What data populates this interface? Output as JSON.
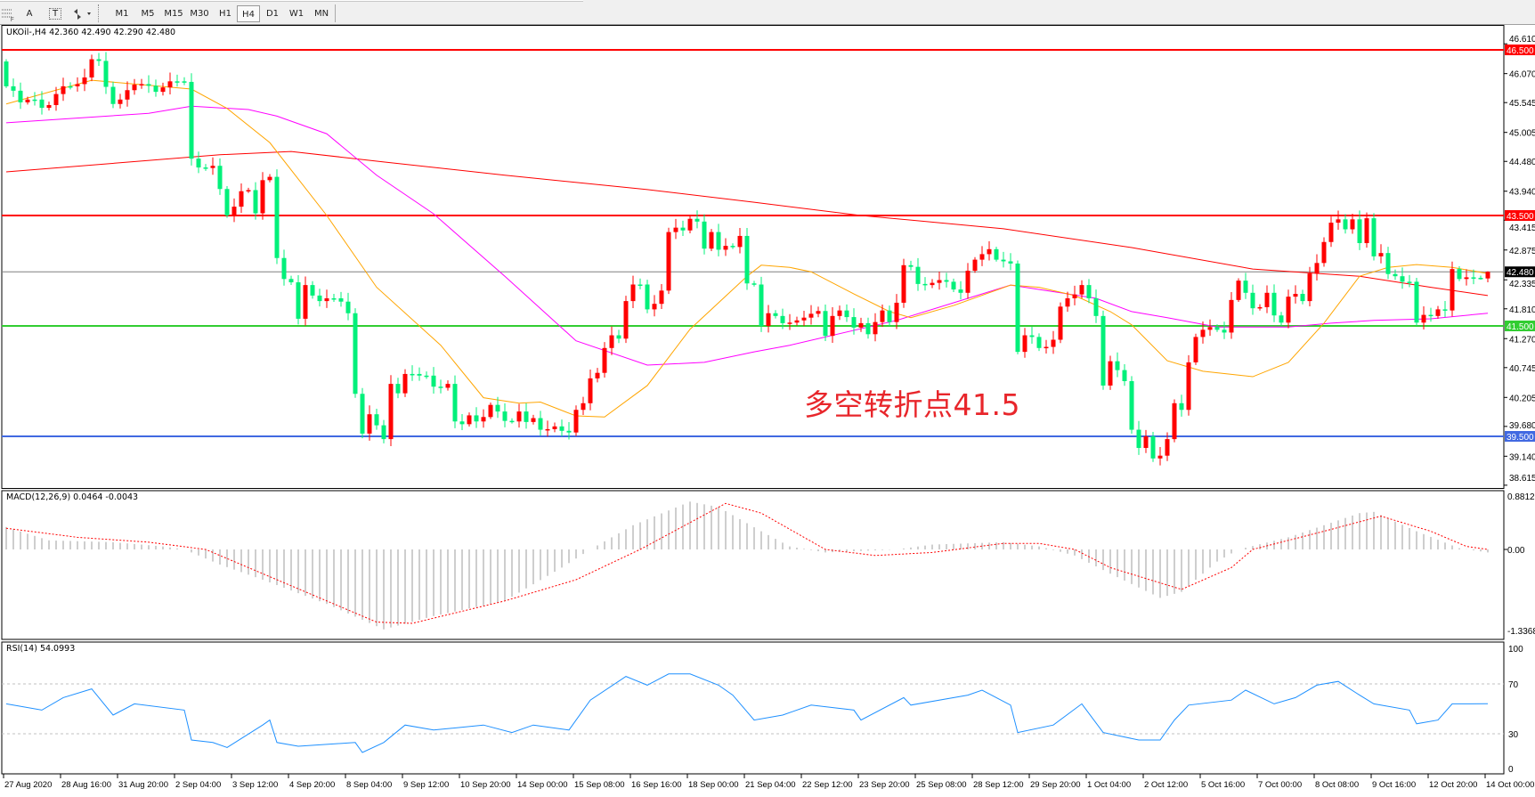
{
  "toolbar": {
    "tools": [
      {
        "icon": "hline-list-icon"
      },
      {
        "icon": "text-a-icon",
        "label": "A"
      },
      {
        "icon": "text-label-icon",
        "label": "T"
      },
      {
        "icon": "arrows-icon"
      }
    ],
    "timeframes": [
      "M1",
      "M5",
      "M15",
      "M30",
      "H1",
      "H4",
      "D1",
      "W1",
      "MN"
    ],
    "active_timeframe": "H4"
  },
  "chart": {
    "title": "UKOil-,H4  42.360 42.490 42.290 42.480",
    "symbol": "UKOil-",
    "timeframe": "H4",
    "open": 42.36,
    "high": 42.49,
    "low": 42.29,
    "close": 42.48,
    "annotation": "多空转折点41.5",
    "colors": {
      "bull": "#ff0000",
      "bear": "#00f07a",
      "ma_fast": "#ffa500",
      "ma_mid": "#ff00ff",
      "ma_slow": "#ff0000",
      "grid": "#c0c0c0"
    },
    "price_axis": {
      "range": [
        38.56,
        46.92
      ],
      "ticks": [
        "46.610",
        "46.070",
        "45.545",
        "45.005",
        "44.480",
        "43.940",
        "43.415",
        "42.875",
        "42.335",
        "41.810",
        "41.270",
        "40.745",
        "40.205",
        "39.680",
        "39.140",
        "38.615"
      ]
    },
    "levels": [
      {
        "price": 46.5,
        "label": "46.500",
        "color": "#ff0000"
      },
      {
        "price": 43.5,
        "label": "43.500",
        "color": "#ff0000"
      },
      {
        "price": 42.48,
        "label": "42.480",
        "color": "#808080",
        "label_bg": "#000000"
      },
      {
        "price": 41.5,
        "label": "41.500",
        "color": "#32cd32"
      },
      {
        "price": 39.5,
        "label": "39.500",
        "color": "#4169e1"
      }
    ],
    "first_open": 46.29,
    "closes": [
      45.84,
      45.76,
      45.55,
      45.6,
      45.6,
      45.45,
      45.5,
      45.7,
      45.84,
      45.84,
      45.88,
      46.0,
      46.33,
      46.3,
      45.83,
      45.52,
      45.6,
      45.77,
      45.87,
      45.88,
      45.85,
      45.74,
      45.82,
      45.93,
      45.93,
      45.92,
      44.53,
      44.37,
      44.36,
      44.4,
      43.98,
      43.5,
      43.66,
      43.94,
      43.96,
      43.54,
      44.14,
      44.2,
      42.73,
      42.35,
      42.29,
      41.63,
      42.24,
      42.05,
      41.95,
      42.0,
      42.0,
      41.94,
      41.73,
      40.27,
      39.55,
      39.9,
      39.7,
      39.45,
      40.45,
      40.28,
      40.63,
      40.63,
      40.6,
      40.6,
      40.4,
      40.38,
      40.45,
      39.77,
      39.72,
      39.88,
      39.77,
      39.85,
      40.07,
      39.95,
      39.78,
      39.77,
      39.95,
      39.76,
      39.83,
      39.62,
      39.63,
      39.68,
      39.6,
      39.57,
      39.98,
      40.1,
      40.55,
      40.65,
      41.1,
      41.33,
      41.27,
      41.95,
      42.25,
      42.25,
      41.8,
      41.9,
      42.14,
      43.2,
      43.28,
      43.23,
      43.44,
      43.39,
      42.9,
      43.2,
      42.88,
      42.95,
      42.93,
      43.13,
      42.27,
      42.25,
      41.5,
      41.73,
      41.68,
      41.55,
      41.56,
      41.6,
      41.65,
      41.72,
      41.77,
      41.32,
      41.68,
      41.78,
      41.66,
      41.47,
      41.55,
      41.35,
      41.57,
      41.78,
      41.57,
      41.92,
      42.6,
      42.57,
      42.26,
      42.24,
      42.28,
      42.33,
      42.3,
      42.16,
      42.1,
      42.5,
      42.7,
      42.8,
      42.89,
      42.7,
      42.67,
      42.63,
      41.03,
      41.33,
      41.3,
      41.1,
      41.12,
      41.25,
      41.85,
      42.0,
      42.07,
      42.24,
      42.0,
      41.68,
      40.42,
      40.86,
      40.7,
      40.5,
      39.62,
      39.29,
      39.5,
      39.1,
      39.15,
      39.45,
      40.1,
      39.98,
      40.84,
      41.3,
      41.43,
      41.48,
      41.43,
      41.38,
      41.97,
      42.32,
      42.1,
      41.82,
      41.84,
      42.1,
      41.69,
      41.56,
      42.03,
      42.08,
      41.95,
      42.45,
      42.64,
      43.02,
      43.37,
      43.43,
      43.25,
      43.43,
      43.0,
      43.45,
      42.76,
      42.82,
      42.44,
      42.4,
      42.3,
      42.3,
      41.56,
      41.7,
      41.68,
      41.8,
      41.78,
      42.53,
      42.35,
      42.38,
      42.37,
      42.37,
      42.48
    ],
    "ma_fast": [
      [
        0,
        45.52
      ],
      [
        12,
        45.95
      ],
      [
        26,
        45.79
      ],
      [
        31,
        45.44
      ],
      [
        37,
        44.82
      ],
      [
        45,
        43.5
      ],
      [
        52,
        42.2
      ],
      [
        61,
        41.15
      ],
      [
        67,
        40.2
      ],
      [
        72,
        40.1
      ],
      [
        75,
        40.12
      ],
      [
        80,
        39.87
      ],
      [
        84,
        39.85
      ],
      [
        90,
        40.42
      ],
      [
        96,
        41.44
      ],
      [
        104,
        42.4
      ],
      [
        106,
        42.6
      ],
      [
        110,
        42.56
      ],
      [
        113,
        42.48
      ],
      [
        119,
        42.08
      ],
      [
        124,
        41.76
      ],
      [
        127,
        41.65
      ],
      [
        133,
        41.87
      ],
      [
        141,
        42.24
      ],
      [
        145,
        42.2
      ],
      [
        150,
        42.05
      ],
      [
        155,
        41.76
      ],
      [
        158,
        41.52
      ],
      [
        163,
        40.87
      ],
      [
        168,
        40.68
      ],
      [
        175,
        40.58
      ],
      [
        180,
        40.84
      ],
      [
        185,
        41.55
      ],
      [
        190,
        42.4
      ],
      [
        194,
        42.56
      ],
      [
        198,
        42.61
      ],
      [
        203,
        42.56
      ],
      [
        208,
        42.45
      ]
    ],
    "ma_mid": [
      [
        0,
        45.18
      ],
      [
        20,
        45.35
      ],
      [
        26,
        45.48
      ],
      [
        34,
        45.42
      ],
      [
        38,
        45.3
      ],
      [
        45,
        44.98
      ],
      [
        52,
        44.23
      ],
      [
        60,
        43.53
      ],
      [
        70,
        42.4
      ],
      [
        80,
        41.23
      ],
      [
        90,
        40.79
      ],
      [
        98,
        40.84
      ],
      [
        105,
        41.03
      ],
      [
        110,
        41.15
      ],
      [
        125,
        41.6
      ],
      [
        133,
        41.92
      ],
      [
        141,
        42.24
      ],
      [
        148,
        42.1
      ],
      [
        153,
        42.0
      ],
      [
        158,
        41.76
      ],
      [
        163,
        41.65
      ],
      [
        170,
        41.48
      ],
      [
        180,
        41.48
      ],
      [
        186,
        41.55
      ],
      [
        192,
        41.6
      ],
      [
        200,
        41.63
      ],
      [
        208,
        41.73
      ]
    ],
    "ma_slow": [
      [
        0,
        44.29
      ],
      [
        30,
        44.6
      ],
      [
        40,
        44.66
      ],
      [
        53,
        44.47
      ],
      [
        70,
        44.23
      ],
      [
        90,
        43.97
      ],
      [
        105,
        43.74
      ],
      [
        120,
        43.5
      ],
      [
        140,
        43.26
      ],
      [
        158,
        42.92
      ],
      [
        175,
        42.53
      ],
      [
        190,
        42.4
      ],
      [
        200,
        42.2
      ],
      [
        208,
        42.05
      ]
    ],
    "time_labels": [
      "27 Aug 2020",
      "28 Aug 16:00",
      "31 Aug 20:00",
      "2 Sep 04:00",
      "3 Sep 12:00",
      "4 Sep 20:00",
      "8 Sep 04:00",
      "9 Sep 12:00",
      "10 Sep 20:00",
      "14 Sep 00:00",
      "15 Sep 08:00",
      "16 Sep 16:00",
      "18 Sep 00:00",
      "21 Sep 04:00",
      "22 Sep 12:00",
      "23 Sep 20:00",
      "25 Sep 08:00",
      "28 Sep 12:00",
      "29 Sep 20:00",
      "1 Oct 04:00",
      "2 Oct 12:00",
      "5 Oct 16:00",
      "7 Oct 00:00",
      "8 Oct 08:00",
      "9 Oct 16:00",
      "12 Oct 20:00",
      "14 Oct 00:00"
    ]
  },
  "macd": {
    "label": "MACD(12,26,9) 0.0464 -0.0043",
    "axis": {
      "max": "0.8812",
      "zero": "0.00",
      "min": "-1.3368"
    },
    "range": [
      -1.3368,
      0.8812
    ],
    "histogram_color": "#b4b4b4",
    "signal_color": "#ff0000",
    "histogram": [
      [
        0,
        0.37
      ],
      [
        6,
        0.15
      ],
      [
        15,
        0.12
      ],
      [
        22,
        0.05
      ],
      [
        25,
        0
      ],
      [
        30,
        -0.25
      ],
      [
        36,
        -0.5
      ],
      [
        45,
        -0.9
      ],
      [
        53,
        -1.32
      ],
      [
        60,
        -1.1
      ],
      [
        70,
        -0.85
      ],
      [
        78,
        -0.3
      ],
      [
        82,
        0
      ],
      [
        88,
        0.4
      ],
      [
        96,
        0.79
      ],
      [
        100,
        0.7
      ],
      [
        106,
        0.3
      ],
      [
        110,
        0.05
      ],
      [
        115,
        -0.05
      ],
      [
        125,
        0
      ],
      [
        130,
        0.08
      ],
      [
        140,
        0.12
      ],
      [
        145,
        0.05
      ],
      [
        150,
        -0.1
      ],
      [
        155,
        -0.4
      ],
      [
        162,
        -0.8
      ],
      [
        165,
        -0.7
      ],
      [
        170,
        -0.2
      ],
      [
        173,
        0
      ],
      [
        180,
        0.2
      ],
      [
        190,
        0.6
      ],
      [
        192,
        0.62
      ],
      [
        198,
        0.3
      ],
      [
        204,
        0.02
      ],
      [
        208,
        -0.05
      ]
    ],
    "signal": [
      [
        0,
        0.35
      ],
      [
        10,
        0.2
      ],
      [
        20,
        0.12
      ],
      [
        28,
        0
      ],
      [
        40,
        -0.6
      ],
      [
        52,
        -1.2
      ],
      [
        57,
        -1.22
      ],
      [
        70,
        -0.85
      ],
      [
        80,
        -0.5
      ],
      [
        89,
        0
      ],
      [
        101,
        0.76
      ],
      [
        106,
        0.6
      ],
      [
        115,
        0
      ],
      [
        122,
        -0.1
      ],
      [
        130,
        -0.05
      ],
      [
        140,
        0.1
      ],
      [
        145,
        0.1
      ],
      [
        150,
        0
      ],
      [
        155,
        -0.3
      ],
      [
        165,
        -0.66
      ],
      [
        172,
        -0.3
      ],
      [
        175,
        0
      ],
      [
        185,
        0.3
      ],
      [
        193,
        0.55
      ],
      [
        200,
        0.3
      ],
      [
        205,
        0.05
      ],
      [
        208,
        0
      ]
    ]
  },
  "rsi": {
    "label": "RSI(14) 54.0993",
    "axis": [
      "100",
      "70",
      "30",
      "0"
    ],
    "levels": [
      70,
      30
    ],
    "color": "#1e90ff",
    "values": [
      [
        0,
        54
      ],
      [
        5,
        49
      ],
      [
        8,
        59
      ],
      [
        12,
        66
      ],
      [
        15,
        45
      ],
      [
        18,
        54
      ],
      [
        25,
        49
      ],
      [
        26,
        25
      ],
      [
        29,
        23
      ],
      [
        31,
        19
      ],
      [
        36,
        37
      ],
      [
        37,
        41
      ],
      [
        38,
        23
      ],
      [
        41,
        20
      ],
      [
        49,
        23
      ],
      [
        50,
        15
      ],
      [
        53,
        23
      ],
      [
        56,
        37
      ],
      [
        60,
        33
      ],
      [
        67,
        37
      ],
      [
        71,
        31
      ],
      [
        74,
        37
      ],
      [
        79,
        33
      ],
      [
        82,
        57
      ],
      [
        87,
        76
      ],
      [
        90,
        69
      ],
      [
        93,
        78
      ],
      [
        96,
        78
      ],
      [
        100,
        69
      ],
      [
        102,
        61
      ],
      [
        105,
        41
      ],
      [
        109,
        45
      ],
      [
        113,
        53
      ],
      [
        119,
        49
      ],
      [
        120,
        41
      ],
      [
        126,
        59
      ],
      [
        127,
        53
      ],
      [
        135,
        61
      ],
      [
        137,
        65
      ],
      [
        141,
        53
      ],
      [
        142,
        31
      ],
      [
        147,
        37
      ],
      [
        151,
        54
      ],
      [
        154,
        31
      ],
      [
        159,
        25
      ],
      [
        162,
        25
      ],
      [
        164,
        41
      ],
      [
        166,
        53
      ],
      [
        172,
        57
      ],
      [
        174,
        65
      ],
      [
        178,
        54
      ],
      [
        181,
        59
      ],
      [
        184,
        69
      ],
      [
        187,
        72
      ],
      [
        190,
        61
      ],
      [
        192,
        54
      ],
      [
        197,
        49
      ],
      [
        198,
        38
      ],
      [
        201,
        41
      ],
      [
        203,
        54
      ],
      [
        208,
        54.1
      ]
    ]
  }
}
